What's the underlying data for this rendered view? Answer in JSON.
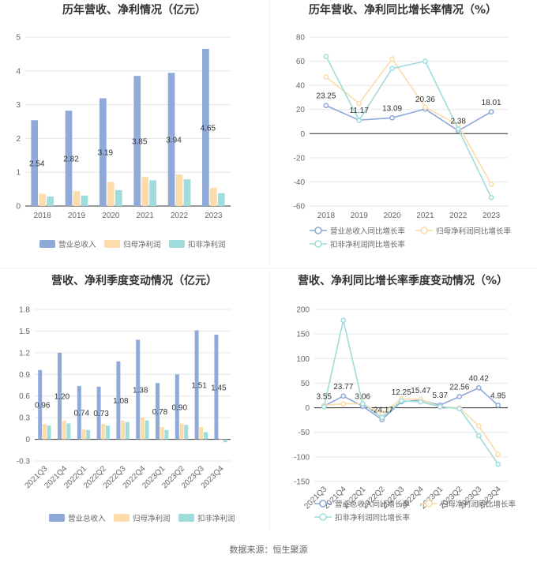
{
  "source": "数据来源：恒生聚源",
  "colors": {
    "revenue": "#8fa9d9",
    "netprofit": "#fbdcaa",
    "deducted": "#9fdcdc",
    "line_rev": "#8fa9d9",
    "line_np": "#fbdcaa",
    "line_ded": "#9fdcdc"
  },
  "chart_data": [
    {
      "type": "bar",
      "title": "历年营收、净利情况（亿元）",
      "categories": [
        "2018",
        "2019",
        "2020",
        "2021",
        "2022",
        "2023"
      ],
      "ylim": [
        0,
        5
      ],
      "yticks": [
        "0",
        "1",
        "2",
        "3",
        "4",
        "5"
      ],
      "series": [
        {
          "name": "营业总收入",
          "values": [
            2.54,
            2.82,
            3.19,
            3.85,
            3.94,
            4.65
          ],
          "labels": [
            "2.54",
            "2.82",
            "3.19",
            "3.85",
            "3.94",
            "4.65"
          ]
        },
        {
          "name": "归母净利润",
          "values": [
            0.36,
            0.44,
            0.71,
            0.86,
            0.93,
            0.54
          ]
        },
        {
          "name": "扣非净利润",
          "values": [
            0.28,
            0.31,
            0.47,
            0.76,
            0.79,
            0.38
          ]
        }
      ],
      "legend": "bottom"
    },
    {
      "type": "line",
      "title": "历年营收、净利同比增长率情况（%）",
      "categories": [
        "2018",
        "2019",
        "2020",
        "2021",
        "2022",
        "2023"
      ],
      "ylim": [
        -60,
        80
      ],
      "yticks": [
        "80",
        "60",
        "40",
        "20",
        "0",
        "-20",
        "-40",
        "-60"
      ],
      "series": [
        {
          "name": "营业总收入同比增长率",
          "values": [
            23.25,
            11.17,
            13.09,
            20.36,
            2.38,
            18.01
          ],
          "labels": [
            "23.25",
            "11.17",
            "13.09",
            "20.36",
            "2.38",
            "18.01"
          ]
        },
        {
          "name": "归母净利润同比增长率",
          "values": [
            47,
            25,
            62,
            22,
            7,
            -42
          ]
        },
        {
          "name": "扣非净利润同比增长率",
          "values": [
            64,
            11,
            54,
            60,
            4,
            -53
          ]
        }
      ],
      "legend": "bottom"
    },
    {
      "type": "bar",
      "title": "营收、净利季度变动情况（亿元）",
      "categories": [
        "2021Q3",
        "2021Q4",
        "2022Q1",
        "2022Q2",
        "2022Q3",
        "2022Q4",
        "2023Q1",
        "2023Q2",
        "2023Q3",
        "2023Q4"
      ],
      "ylim": [
        -0.3,
        1.8
      ],
      "yticks": [
        "1.8",
        "1.5",
        "1.2",
        "0.9",
        "0.6",
        "0.3",
        "0",
        "-0.3"
      ],
      "series": [
        {
          "name": "营业总收入",
          "values": [
            0.96,
            1.2,
            0.74,
            0.73,
            1.08,
            1.38,
            0.78,
            0.9,
            1.51,
            1.45
          ],
          "labels": [
            "0.96",
            "1.20",
            "0.74",
            "0.73",
            "1.08",
            "1.38",
            "0.78",
            "0.90",
            "1.51",
            "1.45"
          ]
        },
        {
          "name": "归母净利润",
          "values": [
            0.21,
            0.26,
            0.14,
            0.21,
            0.26,
            0.3,
            0.17,
            0.22,
            0.17,
            -0.01
          ]
        },
        {
          "name": "扣非净利润",
          "values": [
            0.19,
            0.22,
            0.13,
            0.19,
            0.24,
            0.26,
            0.13,
            0.2,
            0.1,
            -0.04
          ]
        }
      ],
      "legend": "bottom"
    },
    {
      "type": "line",
      "title": "营收、净利同比增长率季度变动情况（%）",
      "categories": [
        "2021Q3",
        "2021Q4",
        "2022Q1",
        "2022Q2",
        "2022Q3",
        "2022Q4",
        "2023Q1",
        "2023Q2",
        "2023Q3",
        "2023Q4"
      ],
      "ylim": [
        -150,
        200
      ],
      "yticks": [
        "200",
        "150",
        "100",
        "50",
        "0",
        "-50",
        "-100",
        "-150"
      ],
      "series": [
        {
          "name": "营业总收入同比增长率",
          "values": [
            3.55,
            23.77,
            3.06,
            -24.17,
            12.25,
            15.47,
            5.37,
            22.56,
            40.42,
            4.95
          ],
          "labels": [
            "3.55",
            "23.77",
            "3.06",
            "-24.17",
            "12.25",
            "15.47",
            "5.37",
            "22.56",
            "40.42",
            "4.95"
          ]
        },
        {
          "name": "归母净利润同比增长率",
          "values": [
            5,
            8,
            8,
            -12,
            18,
            17,
            2,
            0,
            -37,
            -95
          ]
        },
        {
          "name": "扣非净利润同比增长率",
          "values": [
            2,
            178,
            8,
            -20,
            14,
            12,
            2,
            -2,
            -57,
            -115
          ]
        }
      ],
      "legend": "bottom"
    }
  ]
}
